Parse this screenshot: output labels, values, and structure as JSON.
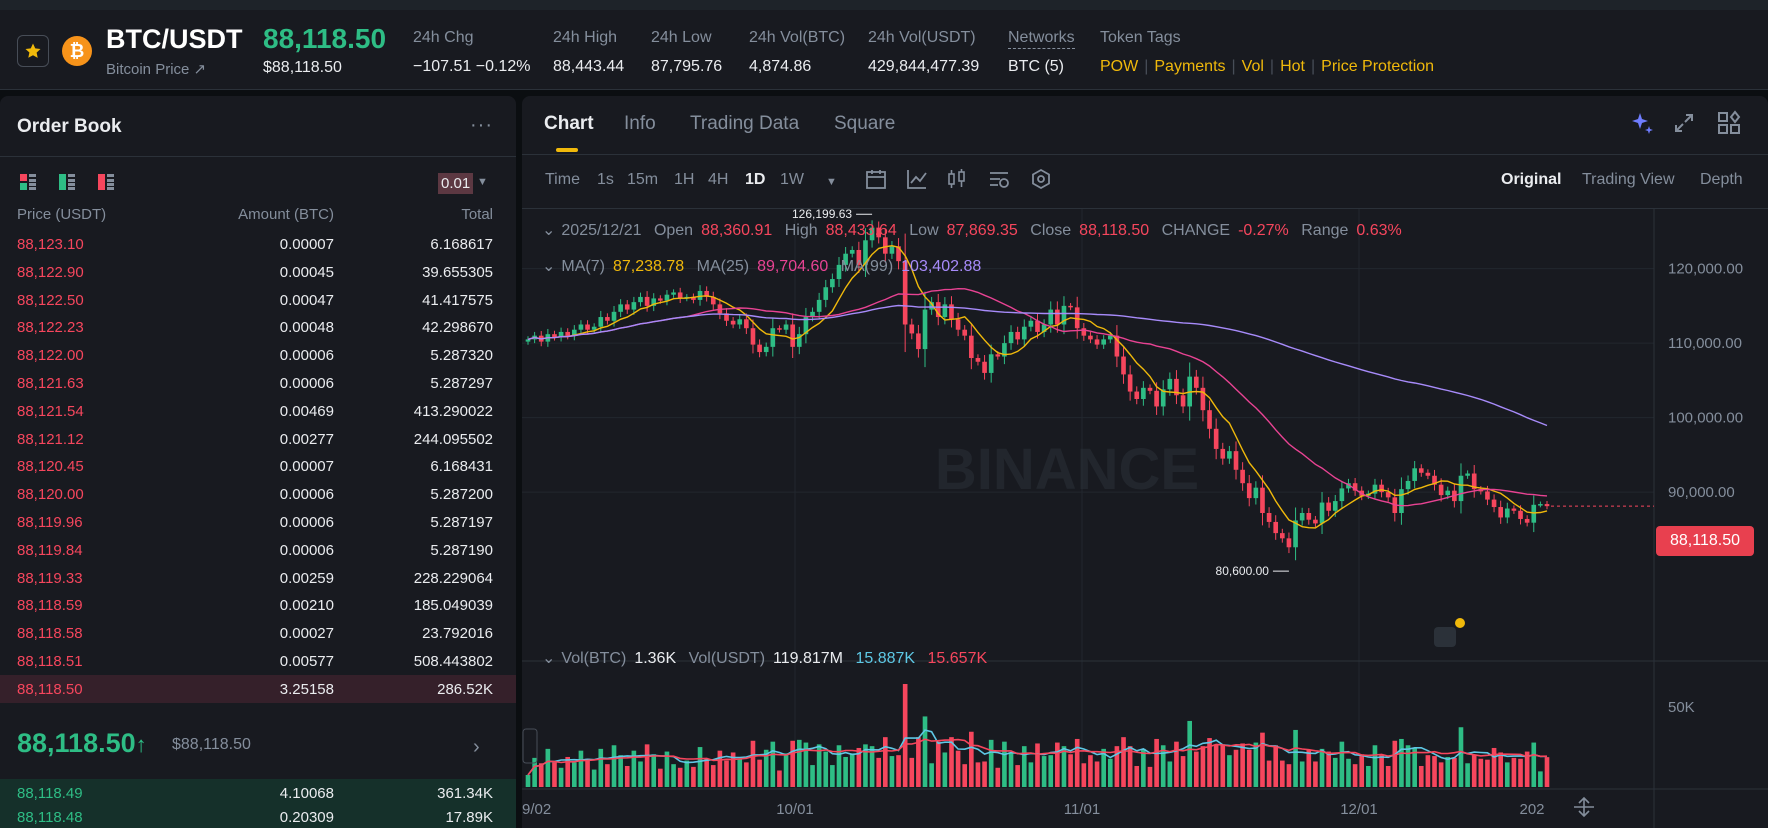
{
  "header": {
    "pair": "BTC/USDT",
    "subtitle": "Bitcoin Price ↗",
    "coin_symbol": "₿",
    "last_price": "88,118.50",
    "last_price_usd": "$88,118.50",
    "stats": [
      {
        "label": "24h Chg",
        "value": "−107.51 −0.12%"
      },
      {
        "label": "24h High",
        "value": "88,443.44"
      },
      {
        "label": "24h Low",
        "value": "87,795.76"
      },
      {
        "label": "24h Vol(BTC)",
        "value": "4,874.86"
      },
      {
        "label": "24h Vol(USDT)",
        "value": "429,844,477.39"
      },
      {
        "label": "Networks",
        "value": "BTC (5)"
      },
      {
        "label": "Token Tags"
      }
    ],
    "tags": [
      "POW",
      "Payments",
      "Vol",
      "Hot",
      "Price Protection"
    ]
  },
  "orderbook": {
    "title": "Order Book",
    "more": "···",
    "tick_size": "0.01",
    "columns": [
      "Price (USDT)",
      "Amount (BTC)",
      "Total"
    ],
    "asks": [
      {
        "price": "88,123.10",
        "amount": "0.00007",
        "total": "6.168617"
      },
      {
        "price": "88,122.90",
        "amount": "0.00045",
        "total": "39.655305"
      },
      {
        "price": "88,122.50",
        "amount": "0.00047",
        "total": "41.417575"
      },
      {
        "price": "88,122.23",
        "amount": "0.00048",
        "total": "42.298670"
      },
      {
        "price": "88,122.00",
        "amount": "0.00006",
        "total": "5.287320"
      },
      {
        "price": "88,121.63",
        "amount": "0.00006",
        "total": "5.287297"
      },
      {
        "price": "88,121.54",
        "amount": "0.00469",
        "total": "413.290022"
      },
      {
        "price": "88,121.12",
        "amount": "0.00277",
        "total": "244.095502"
      },
      {
        "price": "88,120.45",
        "amount": "0.00007",
        "total": "6.168431"
      },
      {
        "price": "88,120.00",
        "amount": "0.00006",
        "total": "5.287200"
      },
      {
        "price": "88,119.96",
        "amount": "0.00006",
        "total": "5.287197"
      },
      {
        "price": "88,119.84",
        "amount": "0.00006",
        "total": "5.287190"
      },
      {
        "price": "88,119.33",
        "amount": "0.00259",
        "total": "228.229064"
      },
      {
        "price": "88,118.59",
        "amount": "0.00210",
        "total": "185.049039"
      },
      {
        "price": "88,118.58",
        "amount": "0.00027",
        "total": "23.792016"
      },
      {
        "price": "88,118.51",
        "amount": "0.00577",
        "total": "508.443802"
      },
      {
        "price": "88,118.50",
        "amount": "3.25158",
        "total": "286.52K"
      }
    ],
    "mid_price": "88,118.50",
    "mid_arrow": "↑",
    "mid_usd": "$88,118.50",
    "bids": [
      {
        "price": "88,118.49",
        "amount": "4.10068",
        "total": "361.34K"
      },
      {
        "price": "88,118.48",
        "amount": "0.20309",
        "total": "17.89K"
      }
    ]
  },
  "chart_panel": {
    "tabs": [
      "Chart",
      "Info",
      "Trading Data",
      "Square"
    ],
    "timeframes": [
      "Time",
      "1s",
      "15m",
      "1H",
      "4H",
      "1D",
      "1W"
    ],
    "active_timeframe": "1D",
    "views": [
      "Original",
      "Trading View",
      "Depth"
    ],
    "ohlc": {
      "date": "2025/12/21",
      "open_label": "Open",
      "open": "88,360.91",
      "high_label": "High",
      "high": "88,433.64",
      "low_label": "Low",
      "low": "87,869.35",
      "close_label": "Close",
      "close": "88,118.50",
      "change_label": "CHANGE",
      "change": "-0.27%",
      "range_label": "Range",
      "range": "0.63%"
    },
    "ma": {
      "ma7_label": "MA(7)",
      "ma7": "87,238.78",
      "ma25_label": "MA(25)",
      "ma25": "89,704.60",
      "ma99_label": "MA(99)",
      "ma99": "103,402.88"
    },
    "vol": {
      "btc_label": "Vol(BTC)",
      "btc": "1.36K",
      "usdt_label": "Vol(USDT)",
      "usdt": "119.817M",
      "ma_a": "15.887K",
      "ma_b": "15.657K"
    },
    "price_tag": "88,118.50",
    "annotations": {
      "high": "126,199.63",
      "low": "80,600.00"
    },
    "watermark": "BINANCE",
    "colors": {
      "up": "#2ebd85",
      "down": "#f6465d",
      "ma7": "#f0b90b",
      "ma25": "#e84393",
      "ma99": "#a78bfa",
      "vol_ma1": "#5ec8e5",
      "vol_ma2": "#f6465d"
    }
  },
  "chart_data": {
    "type": "candlestick",
    "y_ticks": [
      "120,000.00",
      "110,000.00",
      "100,000.00",
      "90,000.00"
    ],
    "x_ticks": [
      "9/02",
      "10/01",
      "11/01",
      "12/01",
      "202"
    ],
    "vol_ticks": [
      "50K"
    ],
    "ylim": [
      77000,
      128000
    ],
    "closes": [
      110500,
      111000,
      110200,
      111200,
      110800,
      111500,
      111000,
      111800,
      112500,
      111800,
      112200,
      113500,
      113000,
      114200,
      115200,
      114500,
      115500,
      116200,
      115000,
      116000,
      115700,
      116500,
      116800,
      116000,
      116200,
      115800,
      117000,
      116200,
      115200,
      114000,
      113000,
      112500,
      113200,
      112000,
      109800,
      108800,
      109500,
      112000,
      111800,
      112500,
      109500,
      111200,
      113500,
      114200,
      115800,
      117500,
      118600,
      120500,
      122000,
      122500,
      120500,
      123800,
      125500,
      124200,
      122000,
      123000,
      121000,
      112500,
      111300,
      109200,
      114500,
      115500,
      113500,
      115200,
      113200,
      111800,
      111000,
      108000,
      107500,
      106000,
      108500,
      108200,
      110000,
      111500,
      110500,
      112200,
      113000,
      111500,
      112500,
      114500,
      112500,
      115000,
      114800,
      112000,
      111000,
      110500,
      109800,
      110500,
      111000,
      108200,
      105800,
      103500,
      102500,
      104000,
      103600,
      101500,
      103800,
      105200,
      103000,
      101500,
      105500,
      104000,
      101000,
      98500,
      95800,
      94500,
      95500,
      93000,
      91200,
      89200,
      90600,
      87200,
      86000,
      84500,
      83800,
      82600,
      86200,
      87200,
      86300,
      85800,
      88600,
      87500,
      88800,
      90500,
      91200,
      90200,
      89500,
      89800,
      91000,
      90000,
      89300,
      87200,
      90400,
      91500,
      93200,
      92600,
      92200,
      91000,
      89600,
      90200,
      88800,
      92200,
      92500,
      90400,
      90100,
      89000,
      88000,
      86600,
      87800,
      87500,
      86400,
      85900,
      88300,
      88400,
      88118.5
    ],
    "ma_series": [
      {
        "name": "MA(7)",
        "start": 0
      },
      {
        "name": "MA(25)",
        "start": 0
      },
      {
        "name": "MA(99)",
        "start": 0
      }
    ]
  }
}
